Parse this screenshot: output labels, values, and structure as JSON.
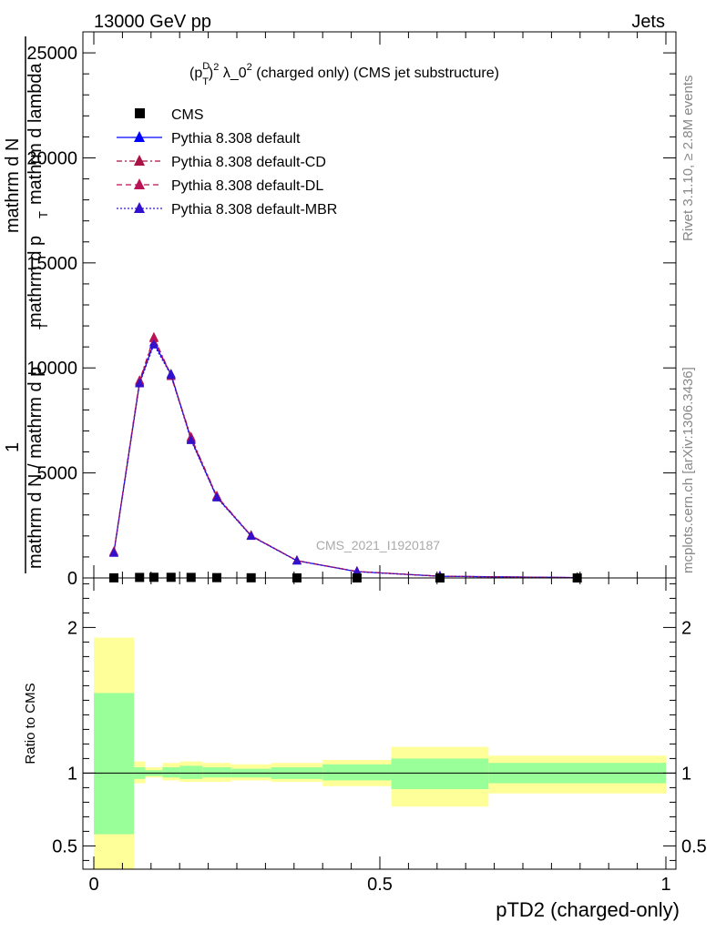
{
  "header": {
    "energy_label": "13000 GeV pp",
    "category_label": "Jets"
  },
  "side_labels": {
    "rivet": "Rivet 3.1.10, ≥ 2.8M events",
    "mcplots": "mcplots.cern.ch [arXiv:1306.3436]"
  },
  "watermark": "CMS_2021_I1920187",
  "chart_data": [
    {
      "type": "line",
      "panel": "main",
      "title_parts": {
        "p": "(p",
        "sup": "D",
        "sub": "T",
        "rest": ")",
        "sq": "2",
        "lam": " λ_0",
        "sq2": "2",
        "tail": " (charged only) (CMS jet substructure)"
      },
      "ylabel_parts": [
        "1",
        "mathrm d N / mathrm d p",
        "T",
        "mathrm d N",
        "mathrm d p",
        "T",
        " mathrm d lambda"
      ],
      "ylim": [
        0,
        26000
      ],
      "xlim": [
        -0.01,
        1.0
      ],
      "yticks": [
        0,
        5000,
        10000,
        15000,
        20000,
        25000
      ],
      "ytick_labels": [
        "0",
        "5000",
        "10000",
        "15000",
        "20000",
        "25000"
      ],
      "x": [
        0.035,
        0.08,
        0.105,
        0.135,
        0.17,
        0.215,
        0.275,
        0.355,
        0.46,
        0.605,
        0.845
      ],
      "cms_values": [
        5,
        25,
        30,
        30,
        25,
        15,
        8,
        4,
        2,
        1,
        0.5
      ],
      "series": [
        {
          "name": "CMS",
          "color": "#000000",
          "marker": "square"
        },
        {
          "name": "Pythia 8.308 default",
          "color": "#0000ff",
          "dash": "solid",
          "values": [
            1200,
            9300,
            11200,
            9700,
            6600,
            3850,
            2000,
            820,
            300,
            80,
            15
          ]
        },
        {
          "name": "Pythia 8.308 default-CD",
          "color": "#aa1144",
          "dash": "dashdot",
          "values": [
            1250,
            9400,
            11450,
            9650,
            6700,
            3900,
            2020,
            830,
            310,
            82,
            16
          ]
        },
        {
          "name": "Pythia 8.308 default-DL",
          "color": "#bb1155",
          "dash": "dash",
          "values": [
            1230,
            9350,
            11400,
            9600,
            6650,
            3870,
            2010,
            825,
            305,
            81,
            15
          ]
        },
        {
          "name": "Pythia 8.308 default-MBR",
          "color": "#3311cc",
          "dash": "dot",
          "values": [
            1180,
            9250,
            11100,
            9650,
            6550,
            3820,
            1990,
            815,
            298,
            79,
            15
          ]
        }
      ]
    },
    {
      "type": "area",
      "panel": "ratio",
      "ylabel": "Ratio to CMS",
      "xlabel": "pTD2 (charged-only)",
      "ylim": [
        0.34,
        2.34
      ],
      "yticks": [
        0.5,
        1,
        2
      ],
      "ytick_labels": [
        "0.5",
        "1",
        "2"
      ],
      "xticks": [
        0,
        0.5,
        1
      ],
      "xtick_labels": [
        "0",
        "0.5",
        "1"
      ],
      "reference_line": 1,
      "bins": [
        {
          "lo": 0.0,
          "hi": 0.07,
          "yellow": [
            0.0,
            1.93
          ],
          "green": [
            0.58,
            1.55
          ]
        },
        {
          "lo": 0.07,
          "hi": 0.09,
          "yellow": [
            0.93,
            1.08
          ],
          "green": [
            0.96,
            1.04
          ]
        },
        {
          "lo": 0.09,
          "hi": 0.12,
          "yellow": [
            0.97,
            1.04
          ],
          "green": [
            0.98,
            1.02
          ]
        },
        {
          "lo": 0.12,
          "hi": 0.15,
          "yellow": [
            0.95,
            1.07
          ],
          "green": [
            0.97,
            1.04
          ]
        },
        {
          "lo": 0.15,
          "hi": 0.19,
          "yellow": [
            0.94,
            1.08
          ],
          "green": [
            0.96,
            1.05
          ]
        },
        {
          "lo": 0.19,
          "hi": 0.24,
          "yellow": [
            0.94,
            1.07
          ],
          "green": [
            0.97,
            1.04
          ]
        },
        {
          "lo": 0.24,
          "hi": 0.31,
          "yellow": [
            0.95,
            1.06
          ],
          "green": [
            0.97,
            1.03
          ]
        },
        {
          "lo": 0.31,
          "hi": 0.4,
          "yellow": [
            0.94,
            1.07
          ],
          "green": [
            0.96,
            1.04
          ]
        },
        {
          "lo": 0.4,
          "hi": 0.52,
          "yellow": [
            0.91,
            1.09
          ],
          "green": [
            0.95,
            1.06
          ]
        },
        {
          "lo": 0.52,
          "hi": 0.69,
          "yellow": [
            0.77,
            1.18
          ],
          "green": [
            0.89,
            1.1
          ]
        },
        {
          "lo": 0.69,
          "hi": 1.0,
          "yellow": [
            0.86,
            1.12
          ],
          "green": [
            0.93,
            1.07
          ]
        }
      ],
      "colors": {
        "yellow": "#ffff99",
        "green": "#99ff99"
      }
    }
  ]
}
